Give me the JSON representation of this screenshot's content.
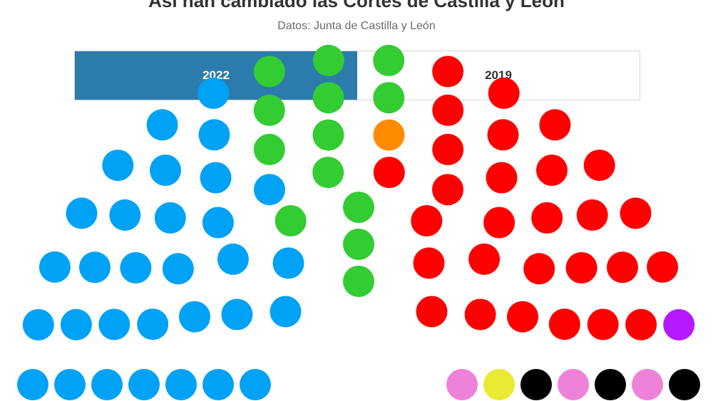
{
  "header": {
    "title": "Así han cambiado las Cortes de Castilla y León",
    "subtitle": "Datos: Junta de Castilla y León"
  },
  "tabs": [
    {
      "label": "2022",
      "active": true
    },
    {
      "label": "2019",
      "active": false
    }
  ],
  "chart_data": {
    "type": "parliament",
    "seats_shown": 81,
    "series": [
      {
        "color": "#00a2f5",
        "seats": 31
      },
      {
        "color": "#33cc33",
        "seats": 13
      },
      {
        "color": "#ff8c00",
        "seats": 1
      },
      {
        "color": "#ff0000",
        "seats": 28
      },
      {
        "color": "#b31aff",
        "seats": 1
      },
      {
        "color": "#ee82d8",
        "seats": 3
      },
      {
        "color": "#eaea33",
        "seats": 1
      },
      {
        "color": "#000000",
        "seats": 3
      }
    ]
  }
}
